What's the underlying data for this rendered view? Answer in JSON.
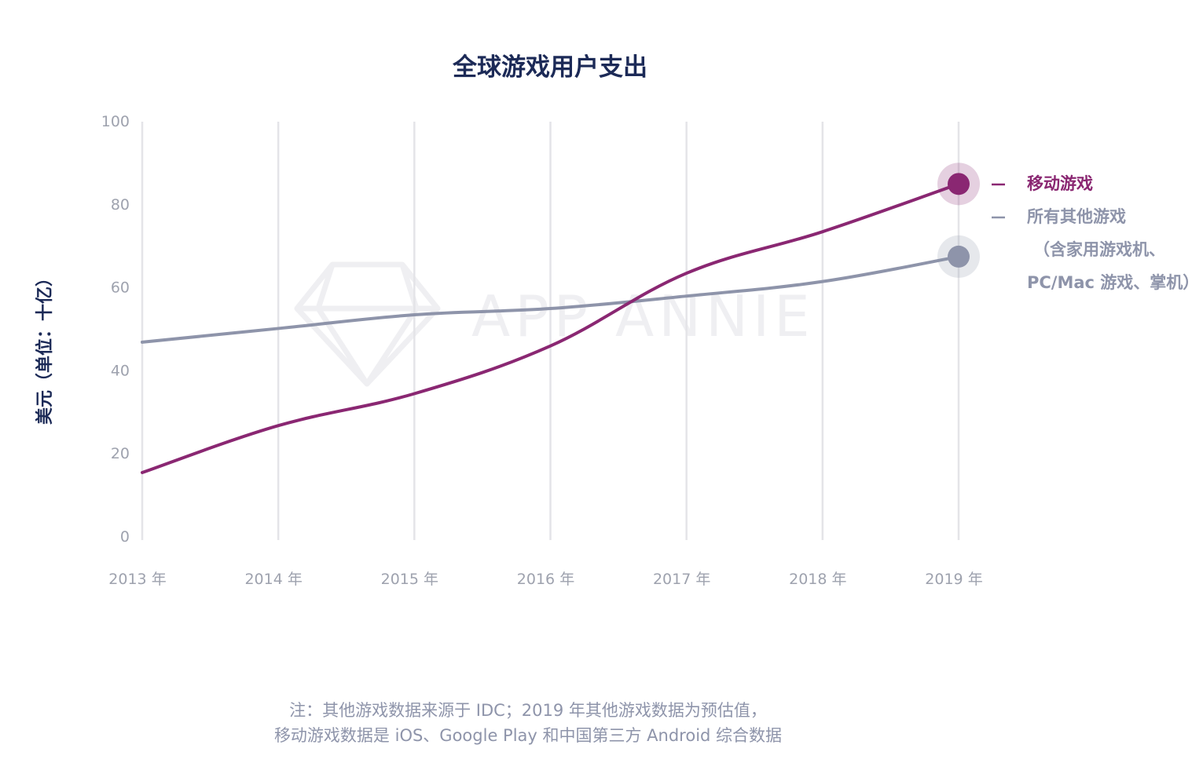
{
  "chart_data": {
    "type": "line",
    "title": "全球游戏用户支出",
    "ylabel": "美元（单位：十亿）",
    "categories": [
      "2013 年",
      "2014 年",
      "2015 年",
      "2016 年",
      "2017 年",
      "2018 年",
      "2019 年"
    ],
    "y_ticks": [
      0,
      20,
      40,
      60,
      80,
      100
    ],
    "ylim": [
      0,
      100
    ],
    "grid": "vertical",
    "legend_position": "right",
    "series": [
      {
        "name": "移动游戏",
        "color": "#8a2772",
        "values": [
          15.5,
          26.8,
          34.5,
          46.0,
          63.5,
          73.5,
          85.0
        ]
      },
      {
        "name": "所有其他游戏",
        "name_lines": [
          "所有其他游戏",
          "（含家用游戏机、",
          "PC/Mac 游戏、掌机）"
        ],
        "color": "#8e94aa",
        "values": [
          46.9,
          50.2,
          53.5,
          55.0,
          58.0,
          61.5,
          67.5
        ]
      }
    ],
    "watermark": "APP ANNIE",
    "note_lines": [
      "注：其他游戏数据来源于 IDC；2019 年其他游戏数据为预估值，",
      "移动游戏数据是 iOS、Google Play 和中国第三方 Android 综合数据"
    ],
    "colors": {
      "title": "#1c2a57",
      "tick": "#9ea2ae",
      "grid": "#e4e4e8",
      "note": "#8e94aa",
      "watermark": "#efeff2"
    }
  }
}
